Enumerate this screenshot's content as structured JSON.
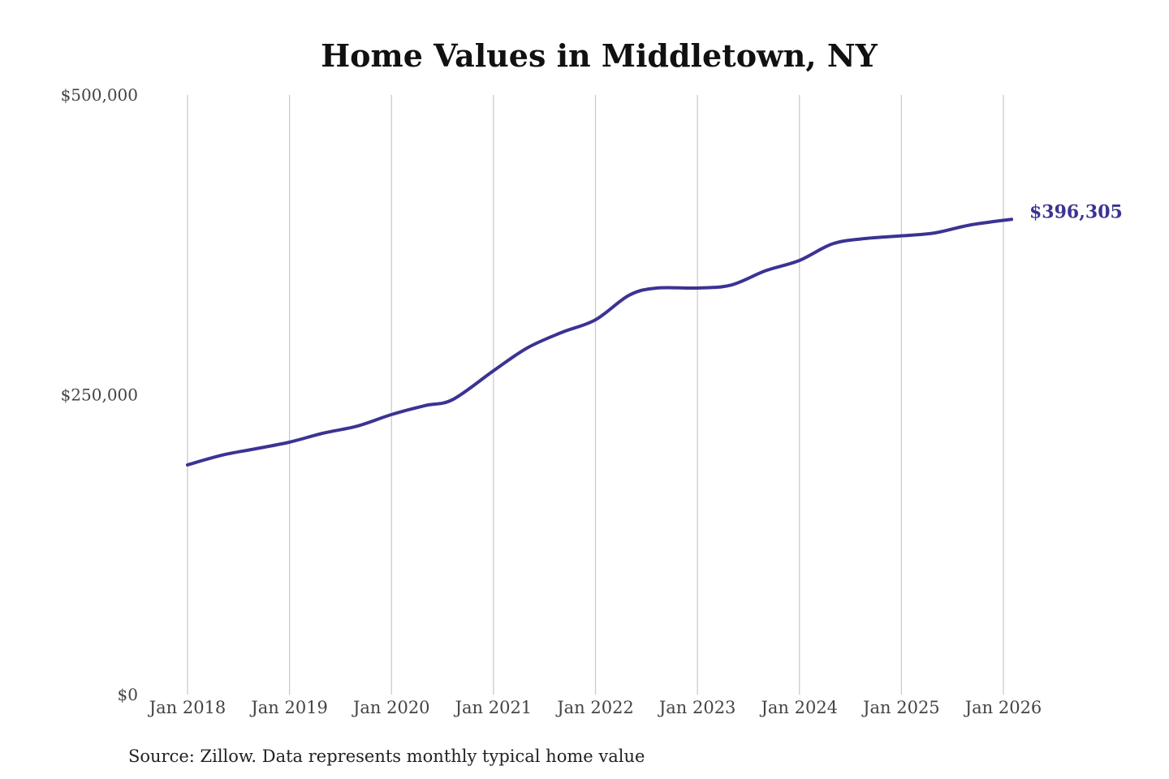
{
  "chart_data": {
    "type": "line",
    "title": "Home Values in Middletown, NY",
    "xlabel": "",
    "ylabel": "",
    "y_tick_labels": [
      "$0",
      "$250,000",
      "$500,000"
    ],
    "y_tick_values": [
      0,
      250000,
      500000
    ],
    "ylim": [
      0,
      500000
    ],
    "x_tick_labels": [
      "Jan 2018",
      "Jan 2019",
      "Jan 2020",
      "Jan 2021",
      "Jan 2022",
      "Jan 2023",
      "Jan 2024",
      "Jan 2025",
      "Jan 2026"
    ],
    "x_tick_values": [
      2018,
      2019,
      2020,
      2021,
      2022,
      2023,
      2024,
      2025,
      2026
    ],
    "xlim": [
      2018,
      2026
    ],
    "grid": "vertical gridlines at each January",
    "series": [
      {
        "color": "#3b3393",
        "points": [
          {
            "x": 2018.0,
            "y": 191500
          },
          {
            "x": 2018.33,
            "y": 199500
          },
          {
            "x": 2018.67,
            "y": 205000
          },
          {
            "x": 2019.0,
            "y": 210500
          },
          {
            "x": 2019.33,
            "y": 218000
          },
          {
            "x": 2019.67,
            "y": 224000
          },
          {
            "x": 2020.0,
            "y": 233500
          },
          {
            "x": 2020.33,
            "y": 241000
          },
          {
            "x": 2020.6,
            "y": 246000
          },
          {
            "x": 2021.0,
            "y": 270000
          },
          {
            "x": 2021.33,
            "y": 289000
          },
          {
            "x": 2021.67,
            "y": 302000
          },
          {
            "x": 2022.0,
            "y": 312500
          },
          {
            "x": 2022.33,
            "y": 333000
          },
          {
            "x": 2022.6,
            "y": 339000
          },
          {
            "x": 2023.0,
            "y": 339000
          },
          {
            "x": 2023.33,
            "y": 341500
          },
          {
            "x": 2023.67,
            "y": 353500
          },
          {
            "x": 2024.0,
            "y": 362000
          },
          {
            "x": 2024.33,
            "y": 376000
          },
          {
            "x": 2024.67,
            "y": 380500
          },
          {
            "x": 2025.0,
            "y": 382500
          },
          {
            "x": 2025.33,
            "y": 385000
          },
          {
            "x": 2025.67,
            "y": 391500
          },
          {
            "x": 2026.08,
            "y": 396305
          }
        ]
      }
    ],
    "end_label": "$396,305",
    "end_label_color": "#3b3393",
    "annotation": "Source: Zillow. Data represents monthly typical home value"
  }
}
